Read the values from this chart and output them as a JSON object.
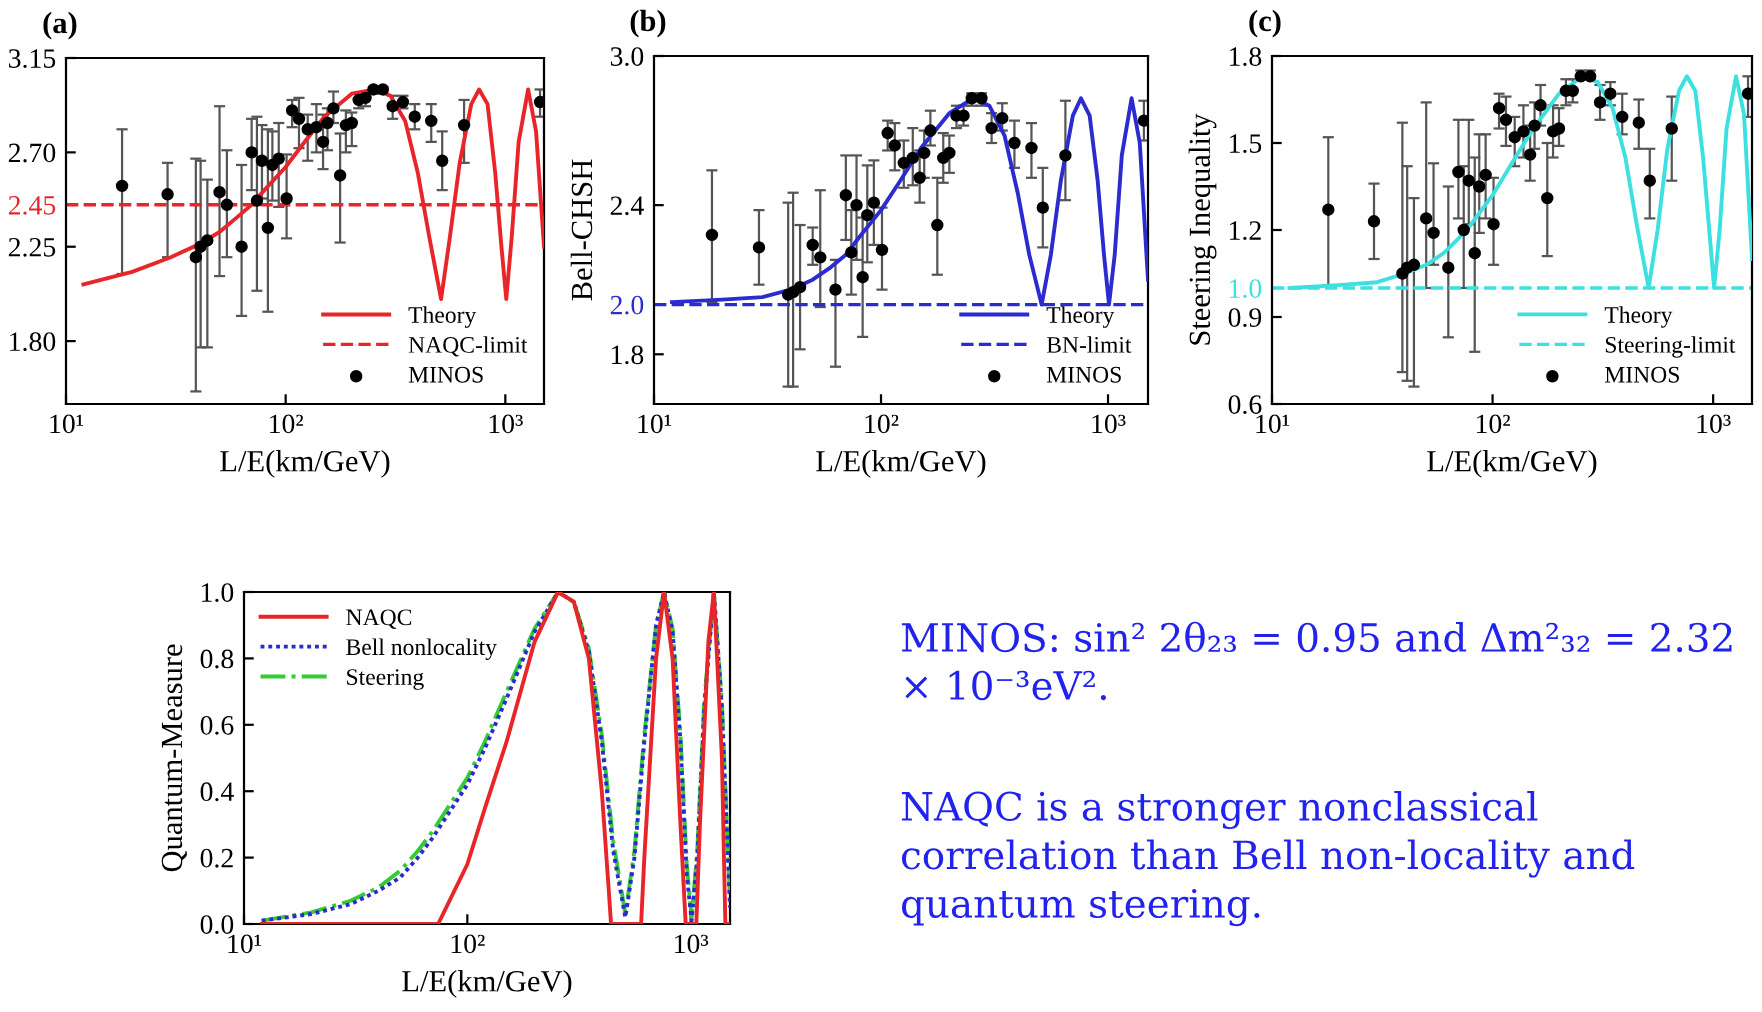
{
  "chart_data": [
    {
      "type": "line",
      "title": "(a)",
      "xlabel": "L/E(km/GeV)",
      "log": "x",
      "xlim": [
        10,
        1500
      ],
      "xticks": [
        {
          "value": 10,
          "label": "10¹"
        },
        {
          "value": 100,
          "label": "10²"
        },
        {
          "value": 1000,
          "label": "10³"
        }
      ],
      "ylim": [
        1.5,
        3.15
      ],
      "yticks": [
        {
          "value": 1.8,
          "label": "1.80"
        },
        2.25,
        2.45,
        {
          "value": 2.7,
          "label": "2.70"
        },
        3.15
      ],
      "legend": "bottom right",
      "ref_lines": [
        {
          "axis": "y",
          "value": 2.45,
          "label": "NAQC-limit",
          "color": "#e8262a",
          "line_style": "dashed"
        }
      ],
      "series": [
        {
          "name": "Theory",
          "type": "line",
          "color": "#e8262a",
          "line_style": "solid",
          "x": [
            12,
            20,
            30,
            40,
            50,
            60,
            70,
            80,
            100,
            120,
            150,
            200,
            255,
            300,
            350,
            400,
            450,
            510,
            560,
            620,
            700,
            760,
            830,
            900,
            960,
            1010,
            1070,
            1150,
            1270,
            1380,
            1500
          ],
          "values": [
            2.07,
            2.13,
            2.2,
            2.26,
            2.32,
            2.39,
            2.45,
            2.52,
            2.63,
            2.74,
            2.87,
            2.98,
            3.0,
            2.97,
            2.85,
            2.6,
            2.3,
            2.0,
            2.3,
            2.65,
            2.93,
            3.0,
            2.93,
            2.6,
            2.25,
            2.0,
            2.3,
            2.75,
            3.0,
            2.8,
            2.25
          ]
        },
        {
          "name": "MINOS",
          "type": "scatter",
          "color": "#000000",
          "marker": "circle",
          "x": [
            18,
            29,
            39,
            41,
            44,
            50,
            54,
            63,
            70,
            74,
            78,
            83,
            87,
            93,
            101,
            107,
            115,
            126,
            138,
            148,
            155,
            165,
            177,
            188,
            200,
            215,
            231,
            251,
            277,
            307,
            342,
            387,
            460,
            516,
            649,
            1439
          ],
          "values": [
            2.54,
            2.5,
            2.2,
            2.25,
            2.28,
            2.51,
            2.45,
            2.25,
            2.7,
            2.47,
            2.66,
            2.34,
            2.64,
            2.67,
            2.48,
            2.9,
            2.86,
            2.81,
            2.82,
            2.75,
            2.84,
            2.91,
            2.59,
            2.83,
            2.84,
            2.95,
            2.96,
            3.0,
            3.0,
            2.92,
            2.94,
            2.87,
            2.85,
            2.66,
            2.83,
            2.94
          ],
          "errors": [
            [
              2.12,
              2.81
            ],
            [
              2.2,
              2.65
            ],
            [
              1.56,
              2.67
            ],
            [
              1.77,
              2.66
            ],
            [
              1.77,
              2.57
            ],
            [
              2.11,
              2.92
            ],
            [
              2.2,
              2.71
            ],
            [
              1.92,
              2.64
            ],
            [
              2.52,
              2.86
            ],
            [
              2.04,
              2.87
            ],
            [
              2.48,
              2.83
            ],
            [
              1.94,
              2.81
            ],
            [
              2.47,
              2.8
            ],
            [
              2.44,
              2.84
            ],
            [
              2.29,
              2.69
            ],
            [
              2.82,
              2.95
            ],
            [
              2.72,
              2.96
            ],
            [
              2.66,
              2.88
            ],
            [
              2.7,
              2.93
            ],
            [
              2.62,
              2.88
            ],
            [
              2.71,
              2.91
            ],
            [
              2.84,
              2.99
            ],
            [
              2.27,
              2.79
            ],
            [
              2.7,
              2.9
            ],
            [
              2.73,
              2.89
            ],
            [
              2.91,
              2.98
            ],
            [
              2.92,
              2.99
            ],
            [
              2.98,
              3.01
            ],
            [
              2.98,
              3.01
            ],
            [
              2.86,
              2.97
            ],
            [
              2.91,
              2.97
            ],
            [
              2.81,
              2.93
            ],
            [
              2.75,
              2.93
            ],
            [
              2.52,
              2.8
            ],
            [
              2.65,
              2.95
            ],
            [
              2.87,
              3.0
            ]
          ]
        }
      ]
    },
    {
      "type": "line",
      "title": "(b)",
      "xlabel": "L/E(km/GeV)",
      "ylabel": "Bell-CHSH",
      "log": "x",
      "xlim": [
        10,
        1500
      ],
      "xticks": [
        {
          "value": 10,
          "label": "10¹"
        },
        {
          "value": 100,
          "label": "10²"
        },
        {
          "value": 1000,
          "label": "10³"
        }
      ],
      "ylim": [
        1.6,
        3.0
      ],
      "yticks": [
        1.8,
        {
          "value": 2.0,
          "label": "2.0"
        },
        2.4,
        {
          "value": 3.0,
          "label": "3.0"
        }
      ],
      "legend": "bottom right",
      "ref_lines": [
        {
          "axis": "y",
          "value": 2.0,
          "label": "BN-limit",
          "color": "#2b2bd0",
          "line_style": "dashed"
        }
      ],
      "series": [
        {
          "name": "Theory",
          "type": "line",
          "color": "#2b2bd0",
          "line_style": "solid",
          "x": [
            12,
            20,
            30,
            40,
            50,
            60,
            70,
            80,
            100,
            120,
            150,
            200,
            255,
            300,
            350,
            400,
            450,
            510,
            560,
            620,
            700,
            760,
            830,
            900,
            960,
            1010,
            1070,
            1150,
            1270,
            1380,
            1500
          ],
          "values": [
            2.01,
            2.02,
            2.03,
            2.06,
            2.1,
            2.15,
            2.2,
            2.27,
            2.38,
            2.49,
            2.63,
            2.77,
            2.83,
            2.8,
            2.68,
            2.45,
            2.2,
            2.0,
            2.2,
            2.5,
            2.76,
            2.83,
            2.76,
            2.5,
            2.2,
            2.0,
            2.2,
            2.6,
            2.83,
            2.65,
            2.1
          ]
        },
        {
          "name": "MINOS",
          "type": "scatter",
          "color": "#000000",
          "marker": "circle",
          "x": [
            18,
            29,
            39,
            41,
            44,
            50,
            54,
            63,
            70,
            74,
            78,
            83,
            87,
            93,
            101,
            107,
            115,
            126,
            138,
            148,
            155,
            165,
            177,
            188,
            200,
            215,
            231,
            251,
            277,
            307,
            342,
            387,
            460,
            516,
            649,
            1439
          ],
          "values": [
            2.28,
            2.23,
            2.04,
            2.05,
            2.07,
            2.24,
            2.19,
            2.06,
            2.44,
            2.21,
            2.4,
            2.11,
            2.36,
            2.41,
            2.22,
            2.69,
            2.64,
            2.57,
            2.59,
            2.51,
            2.61,
            2.7,
            2.32,
            2.59,
            2.61,
            2.76,
            2.76,
            2.83,
            2.83,
            2.71,
            2.75,
            2.65,
            2.63,
            2.39,
            2.6,
            2.74
          ],
          "errors": [
            [
              2.01,
              2.54
            ],
            [
              2.08,
              2.38
            ],
            [
              1.67,
              2.41
            ],
            [
              1.67,
              2.45
            ],
            [
              1.82,
              2.32
            ],
            [
              2.16,
              2.31
            ],
            [
              1.99,
              2.46
            ],
            [
              1.75,
              2.18
            ],
            [
              2.26,
              2.6
            ],
            [
              2.04,
              2.38
            ],
            [
              2.18,
              2.6
            ],
            [
              1.87,
              2.35
            ],
            [
              2.17,
              2.56
            ],
            [
              2.24,
              2.58
            ],
            [
              2.06,
              2.39
            ],
            [
              2.62,
              2.74
            ],
            [
              2.54,
              2.73
            ],
            [
              2.47,
              2.66
            ],
            [
              2.48,
              2.71
            ],
            [
              2.41,
              2.62
            ],
            [
              2.51,
              2.7
            ],
            [
              2.64,
              2.78
            ],
            [
              2.12,
              2.51
            ],
            [
              2.49,
              2.69
            ],
            [
              2.53,
              2.68
            ],
            [
              2.71,
              2.8
            ],
            [
              2.72,
              2.8
            ],
            [
              2.8,
              2.85
            ],
            [
              2.8,
              2.85
            ],
            [
              2.65,
              2.77
            ],
            [
              2.7,
              2.81
            ],
            [
              2.55,
              2.74
            ],
            [
              2.51,
              2.73
            ],
            [
              2.23,
              2.55
            ],
            [
              2.42,
              2.82
            ],
            [
              2.66,
              2.82
            ]
          ]
        }
      ]
    },
    {
      "type": "line",
      "title": "(c)",
      "xlabel": "L/E(km/GeV)",
      "ylabel": "Steering Inequality",
      "log": "x",
      "xlim": [
        10,
        1500
      ],
      "xticks": [
        {
          "value": 10,
          "label": "10¹"
        },
        {
          "value": 100,
          "label": "10²"
        },
        {
          "value": 1000,
          "label": "10³"
        }
      ],
      "ylim": [
        0.6,
        1.8
      ],
      "yticks": [
        0.6,
        0.9,
        {
          "value": 1.0,
          "label": "1.0"
        },
        1.2,
        1.5,
        1.8
      ],
      "legend": "bottom right",
      "ref_lines": [
        {
          "axis": "y",
          "value": 1.0,
          "label": "Steering-limit",
          "color": "#3de0e0",
          "line_style": "dashed"
        }
      ],
      "series": [
        {
          "name": "Theory",
          "type": "line",
          "color": "#3de0e0",
          "line_style": "solid",
          "x": [
            12,
            20,
            30,
            40,
            50,
            60,
            70,
            80,
            100,
            120,
            150,
            200,
            255,
            300,
            350,
            400,
            450,
            510,
            560,
            620,
            700,
            760,
            830,
            900,
            960,
            1010,
            1070,
            1150,
            1270,
            1380,
            1500
          ],
          "values": [
            1.0,
            1.01,
            1.02,
            1.05,
            1.08,
            1.12,
            1.17,
            1.22,
            1.32,
            1.42,
            1.54,
            1.67,
            1.73,
            1.71,
            1.62,
            1.45,
            1.22,
            1.0,
            1.2,
            1.48,
            1.68,
            1.73,
            1.68,
            1.45,
            1.2,
            1.0,
            1.2,
            1.55,
            1.73,
            1.6,
            1.1
          ]
        },
        {
          "name": "MINOS",
          "type": "scatter",
          "color": "#000000",
          "marker": "circle",
          "x": [
            18,
            29,
            39,
            41,
            44,
            50,
            54,
            63,
            70,
            74,
            78,
            83,
            87,
            93,
            101,
            107,
            115,
            126,
            138,
            148,
            155,
            165,
            177,
            188,
            200,
            215,
            231,
            251,
            277,
            307,
            342,
            387,
            460,
            516,
            649,
            1439
          ],
          "values": [
            1.27,
            1.23,
            1.05,
            1.07,
            1.08,
            1.24,
            1.19,
            1.07,
            1.4,
            1.2,
            1.37,
            1.12,
            1.35,
            1.39,
            1.22,
            1.62,
            1.58,
            1.52,
            1.54,
            1.46,
            1.56,
            1.63,
            1.31,
            1.54,
            1.55,
            1.68,
            1.68,
            1.73,
            1.73,
            1.64,
            1.67,
            1.59,
            1.57,
            1.37,
            1.55,
            1.67
          ],
          "errors": [
            [
              1.01,
              1.52
            ],
            [
              1.1,
              1.36
            ],
            [
              0.71,
              1.57
            ],
            [
              0.68,
              1.42
            ],
            [
              0.66,
              1.31
            ],
            [
              1.0,
              1.64
            ],
            [
              1.08,
              1.43
            ],
            [
              0.83,
              1.35
            ],
            [
              1.24,
              1.58
            ],
            [
              1.0,
              1.42
            ],
            [
              1.22,
              1.58
            ],
            [
              0.78,
              1.45
            ],
            [
              1.19,
              1.53
            ],
            [
              1.24,
              1.53
            ],
            [
              1.08,
              1.38
            ],
            [
              1.55,
              1.67
            ],
            [
              1.49,
              1.66
            ],
            [
              1.42,
              1.59
            ],
            [
              1.45,
              1.63
            ],
            [
              1.37,
              1.56
            ],
            [
              1.48,
              1.64
            ],
            [
              1.56,
              1.7
            ],
            [
              1.11,
              1.5
            ],
            [
              1.45,
              1.63
            ],
            [
              1.49,
              1.62
            ],
            [
              1.63,
              1.72
            ],
            [
              1.64,
              1.72
            ],
            [
              1.72,
              1.75
            ],
            [
              1.72,
              1.75
            ],
            [
              1.58,
              1.7
            ],
            [
              1.63,
              1.71
            ],
            [
              1.53,
              1.67
            ],
            [
              1.48,
              1.65
            ],
            [
              1.24,
              1.48
            ],
            [
              1.37,
              1.66
            ],
            [
              1.59,
              1.73
            ]
          ]
        }
      ]
    },
    {
      "type": "line",
      "xlabel": "L/E(km/GeV)",
      "ylabel": "Quantum-Measure",
      "log": "x",
      "xlim": [
        10,
        1500
      ],
      "xticks": [
        {
          "value": 10,
          "label": "10¹"
        },
        {
          "value": 100,
          "label": "10²"
        },
        {
          "value": 1000,
          "label": "10³"
        }
      ],
      "ylim": [
        0,
        1
      ],
      "yticks": [
        {
          "value": 0,
          "label": "0.0"
        },
        0.2,
        0.4,
        0.6,
        0.8,
        {
          "value": 1,
          "label": "1.0"
        }
      ],
      "legend": "top left",
      "series": [
        {
          "name": "NAQC",
          "color": "#e8262a",
          "line_style": "solid",
          "x": [
            12,
            74,
            100,
            120,
            150,
            200,
            255,
            300,
            350,
            400,
            430,
            440,
            600,
            620,
            700,
            760,
            830,
            900,
            950,
            1060,
            1100,
            1200,
            1270,
            1380,
            1430,
            1500
          ],
          "values": [
            0,
            0,
            0.18,
            0.35,
            0.55,
            0.85,
            1.0,
            0.97,
            0.8,
            0.4,
            0.1,
            0,
            0,
            0.2,
            0.8,
            1.0,
            0.8,
            0.3,
            0,
            0,
            0.3,
            0.85,
            1.0,
            0.5,
            0,
            0
          ]
        },
        {
          "name": "Bell nonlocality",
          "color": "#2b2bd0",
          "line_style": "dotted",
          "x": [
            12,
            20,
            30,
            40,
            50,
            60,
            70,
            80,
            100,
            120,
            150,
            200,
            255,
            300,
            350,
            400,
            450,
            510,
            560,
            620,
            700,
            760,
            830,
            900,
            960,
            1010,
            1070,
            1150,
            1270,
            1380,
            1500
          ],
          "values": [
            0.01,
            0.03,
            0.06,
            0.1,
            0.14,
            0.2,
            0.26,
            0.32,
            0.42,
            0.53,
            0.68,
            0.88,
            1.0,
            0.97,
            0.82,
            0.55,
            0.22,
            0.02,
            0.2,
            0.55,
            0.9,
            1.0,
            0.88,
            0.55,
            0.15,
            0.01,
            0.2,
            0.65,
            1.0,
            0.65,
            0.05
          ]
        },
        {
          "name": "Steering",
          "color": "#33cc33",
          "line_style": "dashdot",
          "x": [
            12,
            20,
            30,
            40,
            50,
            60,
            70,
            80,
            100,
            120,
            150,
            200,
            255,
            300,
            350,
            400,
            450,
            510,
            560,
            620,
            700,
            760,
            830,
            900,
            960,
            1010,
            1070,
            1150,
            1270,
            1380,
            1500
          ],
          "values": [
            0.01,
            0.035,
            0.07,
            0.11,
            0.16,
            0.22,
            0.28,
            0.34,
            0.44,
            0.55,
            0.7,
            0.89,
            1.0,
            0.97,
            0.83,
            0.57,
            0.25,
            0.03,
            0.22,
            0.57,
            0.9,
            1.0,
            0.89,
            0.57,
            0.18,
            0.02,
            0.22,
            0.67,
            1.0,
            0.67,
            0.07
          ]
        }
      ]
    },
    {
      "type": "other",
      "annotations": [
        "MINOS: sin² 2θ₂₃ = 0.95 and Δm²₃₂ = 2.32 × 10⁻³eV².",
        "NAQC is a stronger nonclassical correlation than Bell non-locality and quantum steering."
      ]
    }
  ]
}
